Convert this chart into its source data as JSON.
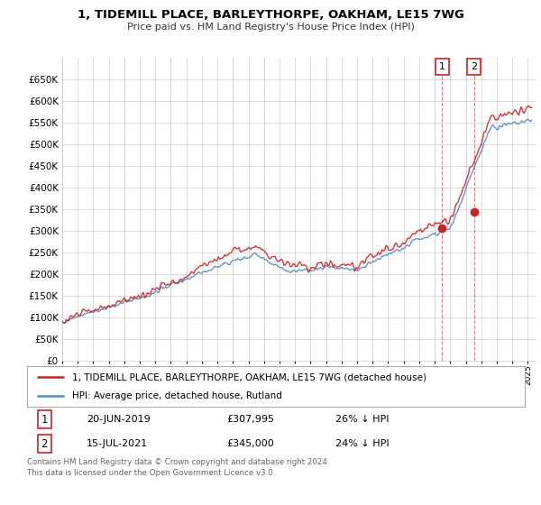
{
  "title": "1, TIDEMILL PLACE, BARLEYTHORPE, OAKHAM, LE15 7WG",
  "subtitle": "Price paid vs. HM Land Registry's House Price Index (HPI)",
  "ylim": [
    0,
    700000
  ],
  "yticks": [
    0,
    50000,
    100000,
    150000,
    200000,
    250000,
    300000,
    350000,
    400000,
    450000,
    500000,
    550000,
    600000,
    650000
  ],
  "xlim_start": 1995.0,
  "xlim_end": 2025.5,
  "hpi_color": "#5588bb",
  "price_color": "#cc2222",
  "sale1_x": 2019.47,
  "sale1_y": 307995,
  "sale2_x": 2021.54,
  "sale2_y": 345000,
  "legend_house": "1, TIDEMILL PLACE, BARLEYTHORPE, OAKHAM, LE15 7WG (detached house)",
  "legend_hpi": "HPI: Average price, detached house, Rutland",
  "table_row1": [
    "1",
    "20-JUN-2019",
    "£307,995",
    "26% ↓ HPI"
  ],
  "table_row2": [
    "2",
    "15-JUL-2021",
    "£345,000",
    "24% ↓ HPI"
  ],
  "footer": "Contains HM Land Registry data © Crown copyright and database right 2024.\nThis data is licensed under the Open Government Licence v3.0.",
  "background_color": "#ffffff",
  "grid_color": "#cccccc"
}
